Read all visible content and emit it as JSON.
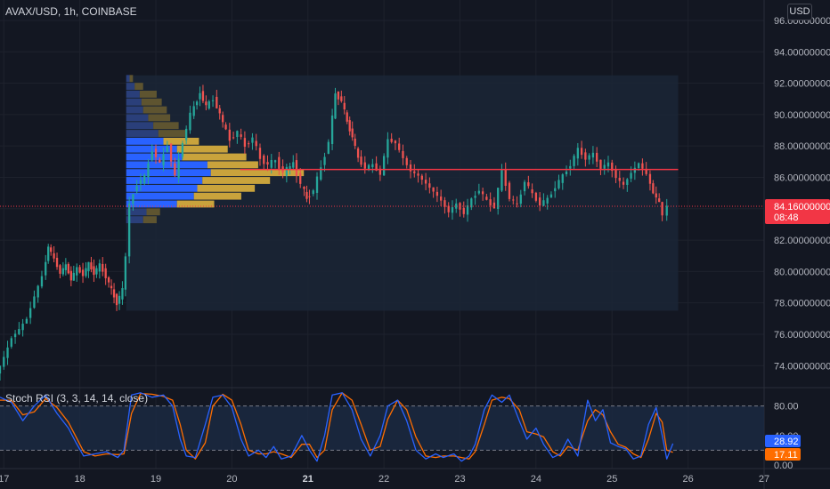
{
  "symbol_title": "AVAX/USD, 1h, COINBASE",
  "currency_button": "USD",
  "stoch_title": "Stoch RSI (3, 3, 14, 14, close)",
  "colors": {
    "background": "#131722",
    "grid": "#1e222d",
    "up": "#26a69a",
    "down": "#ef5350",
    "price_line": "#f23645",
    "vp_up": "#2962ff",
    "vp_down": "#c9a33c",
    "vp_up_outside": "#2a3f7a",
    "vp_down_outside": "#5e5430",
    "poc": "#f23645",
    "k_line": "#2962ff",
    "d_line": "#ff6d00",
    "stoch_band": "#1c2a44"
  },
  "chart_data": [
    {
      "type": "candlestick",
      "title": "AVAX/USD, 1h, COINBASE",
      "y_ticks": [
        "74.00000000",
        "76.00000000",
        "78.00000000",
        "80.00000000",
        "82.00000000",
        "84.00000000",
        "86.00000000",
        "88.00000000",
        "90.00000000",
        "92.00000000",
        "94.00000000",
        "96.00000000"
      ],
      "y_tick_values": [
        74,
        76,
        78,
        80,
        82,
        84,
        86,
        88,
        90,
        92,
        94,
        96
      ],
      "ylim": [
        72.6,
        97.3
      ],
      "x_ticks": [
        "17",
        "18",
        "19",
        "20",
        "21",
        "22",
        "23",
        "24",
        "25",
        "26",
        "27"
      ],
      "x_tick_day": [
        17,
        18,
        19,
        20,
        21,
        22,
        23,
        24,
        25,
        26,
        27
      ],
      "bold_ticks": [
        "21"
      ],
      "xlim_days": [
        16.95,
        27.0
      ],
      "last_price": "84.16000000",
      "last_price_value": 84.16,
      "countdown": "08:48",
      "volume_profile": {
        "day_range": [
          18.61,
          25.87
        ],
        "price_range": [
          77.5,
          92.5
        ],
        "poc_price": 86.5,
        "rows": [
          {
            "price": 92.3,
            "up": 0.02,
            "down": 0.02
          },
          {
            "price": 91.8,
            "up": 0.05,
            "down": 0.05
          },
          {
            "price": 91.3,
            "up": 0.08,
            "down": 0.1
          },
          {
            "price": 90.8,
            "up": 0.09,
            "down": 0.12
          },
          {
            "price": 90.3,
            "up": 0.1,
            "down": 0.14
          },
          {
            "price": 89.8,
            "up": 0.13,
            "down": 0.13
          },
          {
            "price": 89.3,
            "up": 0.16,
            "down": 0.15
          },
          {
            "price": 88.8,
            "up": 0.19,
            "down": 0.17
          },
          {
            "price": 88.3,
            "up": 0.22,
            "down": 0.21
          },
          {
            "price": 87.8,
            "up": 0.3,
            "down": 0.3
          },
          {
            "price": 87.3,
            "up": 0.33,
            "down": 0.38
          },
          {
            "price": 86.8,
            "up": 0.48,
            "down": 0.3
          },
          {
            "price": 86.3,
            "up": 0.5,
            "down": 0.55
          },
          {
            "price": 85.8,
            "up": 0.45,
            "down": 0.4
          },
          {
            "price": 85.3,
            "up": 0.42,
            "down": 0.34
          },
          {
            "price": 84.8,
            "up": 0.4,
            "down": 0.28
          },
          {
            "price": 84.3,
            "up": 0.3,
            "down": 0.22
          },
          {
            "price": 83.8,
            "up": 0.12,
            "down": 0.08
          },
          {
            "price": 83.3,
            "up": 0.1,
            "down": 0.08
          }
        ]
      },
      "price_path": [
        [
          16.95,
          73.5
        ],
        [
          17.05,
          74.5
        ],
        [
          17.15,
          75.8
        ],
        [
          17.25,
          76.3
        ],
        [
          17.35,
          77.0
        ],
        [
          17.45,
          78.4
        ],
        [
          17.55,
          79.7
        ],
        [
          17.62,
          81.6
        ],
        [
          17.7,
          80.8
        ],
        [
          17.78,
          79.9
        ],
        [
          17.85,
          80.4
        ],
        [
          17.92,
          79.5
        ],
        [
          18.0,
          80.2
        ],
        [
          18.08,
          79.8
        ],
        [
          18.15,
          80.5
        ],
        [
          18.22,
          79.9
        ],
        [
          18.3,
          80.4
        ],
        [
          18.38,
          79.7
        ],
        [
          18.45,
          78.8
        ],
        [
          18.52,
          78.0
        ],
        [
          18.6,
          78.8
        ],
        [
          18.65,
          81.0
        ],
        [
          18.7,
          84.3
        ],
        [
          18.8,
          85.6
        ],
        [
          18.9,
          86.0
        ],
        [
          19.0,
          87.8
        ],
        [
          19.1,
          86.8
        ],
        [
          19.2,
          88.1
        ],
        [
          19.3,
          86.0
        ],
        [
          19.4,
          88.3
        ],
        [
          19.5,
          90.0
        ],
        [
          19.62,
          91.4
        ],
        [
          19.7,
          90.5
        ],
        [
          19.8,
          91.0
        ],
        [
          19.92,
          89.5
        ],
        [
          20.02,
          88.4
        ],
        [
          20.12,
          88.9
        ],
        [
          20.22,
          88.0
        ],
        [
          20.32,
          88.5
        ],
        [
          20.42,
          87.2
        ],
        [
          20.52,
          86.8
        ],
        [
          20.62,
          87.1
        ],
        [
          20.72,
          86.3
        ],
        [
          20.85,
          86.9
        ],
        [
          20.95,
          85.6
        ],
        [
          21.02,
          84.6
        ],
        [
          21.12,
          85.2
        ],
        [
          21.22,
          86.6
        ],
        [
          21.32,
          88.3
        ],
        [
          21.4,
          91.3
        ],
        [
          21.48,
          90.9
        ],
        [
          21.55,
          89.5
        ],
        [
          21.62,
          88.6
        ],
        [
          21.7,
          87.2
        ],
        [
          21.8,
          86.6
        ],
        [
          21.9,
          86.8
        ],
        [
          22.0,
          86.2
        ],
        [
          22.1,
          88.4
        ],
        [
          22.2,
          88.2
        ],
        [
          22.3,
          87.2
        ],
        [
          22.4,
          86.4
        ],
        [
          22.5,
          86.1
        ],
        [
          22.6,
          85.6
        ],
        [
          22.7,
          85.1
        ],
        [
          22.8,
          84.5
        ],
        [
          22.9,
          83.8
        ],
        [
          23.0,
          84.3
        ],
        [
          23.1,
          83.7
        ],
        [
          23.2,
          84.6
        ],
        [
          23.3,
          85.2
        ],
        [
          23.4,
          84.5
        ],
        [
          23.5,
          84.1
        ],
        [
          23.6,
          86.4
        ],
        [
          23.7,
          84.7
        ],
        [
          23.8,
          84.2
        ],
        [
          23.9,
          85.8
        ],
        [
          24.0,
          84.9
        ],
        [
          24.1,
          84.3
        ],
        [
          24.2,
          84.6
        ],
        [
          24.3,
          85.4
        ],
        [
          24.4,
          86.1
        ],
        [
          24.5,
          86.8
        ],
        [
          24.6,
          87.8
        ],
        [
          24.7,
          87.2
        ],
        [
          24.8,
          87.5
        ],
        [
          24.9,
          86.6
        ],
        [
          25.0,
          86.9
        ],
        [
          25.1,
          86.0
        ],
        [
          25.2,
          85.5
        ],
        [
          25.3,
          86.3
        ],
        [
          25.4,
          86.9
        ],
        [
          25.5,
          86.2
        ],
        [
          25.58,
          85.0
        ],
        [
          25.66,
          84.4
        ],
        [
          25.72,
          83.6
        ],
        [
          25.78,
          84.16
        ]
      ]
    },
    {
      "type": "line",
      "title": "Stoch RSI (3, 3, 14, 14, close)",
      "y_ticks": [
        "80.00",
        "40.00",
        "0.00"
      ],
      "y_tick_values": [
        80,
        40,
        0
      ],
      "ylim": [
        -5,
        105
      ],
      "band": [
        20,
        80
      ],
      "current_k": "28.92",
      "current_d": "17.11",
      "current_k_value": 28.92,
      "current_d_value": 17.11,
      "k_path": [
        [
          16.95,
          92
        ],
        [
          17.1,
          85
        ],
        [
          17.25,
          60
        ],
        [
          17.4,
          80
        ],
        [
          17.55,
          95
        ],
        [
          17.7,
          70
        ],
        [
          17.85,
          50
        ],
        [
          17.95,
          30
        ],
        [
          18.05,
          12
        ],
        [
          18.2,
          15
        ],
        [
          18.35,
          18
        ],
        [
          18.5,
          10
        ],
        [
          18.58,
          20
        ],
        [
          18.68,
          95
        ],
        [
          18.8,
          98
        ],
        [
          18.95,
          92
        ],
        [
          19.1,
          95
        ],
        [
          19.22,
          80
        ],
        [
          19.32,
          35
        ],
        [
          19.4,
          12
        ],
        [
          19.52,
          10
        ],
        [
          19.65,
          55
        ],
        [
          19.75,
          92
        ],
        [
          19.88,
          95
        ],
        [
          20.0,
          78
        ],
        [
          20.12,
          35
        ],
        [
          20.22,
          12
        ],
        [
          20.35,
          20
        ],
        [
          20.45,
          10
        ],
        [
          20.55,
          25
        ],
        [
          20.65,
          8
        ],
        [
          20.78,
          12
        ],
        [
          20.92,
          40
        ],
        [
          21.02,
          20
        ],
        [
          21.12,
          5
        ],
        [
          21.22,
          40
        ],
        [
          21.32,
          95
        ],
        [
          21.45,
          98
        ],
        [
          21.58,
          75
        ],
        [
          21.7,
          35
        ],
        [
          21.82,
          12
        ],
        [
          21.95,
          40
        ],
        [
          22.05,
          80
        ],
        [
          22.18,
          88
        ],
        [
          22.3,
          60
        ],
        [
          22.42,
          20
        ],
        [
          22.55,
          8
        ],
        [
          22.68,
          15
        ],
        [
          22.78,
          10
        ],
        [
          22.92,
          15
        ],
        [
          23.02,
          5
        ],
        [
          23.12,
          12
        ],
        [
          23.2,
          28
        ],
        [
          23.32,
          75
        ],
        [
          23.42,
          95
        ],
        [
          23.55,
          85
        ],
        [
          23.65,
          95
        ],
        [
          23.78,
          60
        ],
        [
          23.88,
          35
        ],
        [
          24.0,
          50
        ],
        [
          24.1,
          28
        ],
        [
          24.22,
          10
        ],
        [
          24.32,
          15
        ],
        [
          24.42,
          35
        ],
        [
          24.55,
          12
        ],
        [
          24.68,
          88
        ],
        [
          24.78,
          60
        ],
        [
          24.88,
          75
        ],
        [
          24.98,
          30
        ],
        [
          25.08,
          25
        ],
        [
          25.18,
          22
        ],
        [
          25.28,
          8
        ],
        [
          25.38,
          12
        ],
        [
          25.48,
          55
        ],
        [
          25.58,
          78
        ],
        [
          25.66,
          40
        ],
        [
          25.72,
          8
        ],
        [
          25.8,
          28.92
        ]
      ],
      "d_path": [
        [
          16.95,
          88
        ],
        [
          17.1,
          88
        ],
        [
          17.25,
          68
        ],
        [
          17.4,
          72
        ],
        [
          17.55,
          90
        ],
        [
          17.7,
          78
        ],
        [
          17.85,
          58
        ],
        [
          17.95,
          38
        ],
        [
          18.05,
          18
        ],
        [
          18.2,
          12
        ],
        [
          18.35,
          15
        ],
        [
          18.5,
          14
        ],
        [
          18.58,
          15
        ],
        [
          18.68,
          70
        ],
        [
          18.8,
          97
        ],
        [
          18.95,
          96
        ],
        [
          19.1,
          93
        ],
        [
          19.22,
          88
        ],
        [
          19.32,
          55
        ],
        [
          19.4,
          20
        ],
        [
          19.52,
          8
        ],
        [
          19.65,
          30
        ],
        [
          19.75,
          80
        ],
        [
          19.88,
          96
        ],
        [
          20.0,
          88
        ],
        [
          20.12,
          55
        ],
        [
          20.22,
          20
        ],
        [
          20.35,
          15
        ],
        [
          20.45,
          15
        ],
        [
          20.55,
          18
        ],
        [
          20.65,
          15
        ],
        [
          20.78,
          10
        ],
        [
          20.92,
          28
        ],
        [
          21.02,
          28
        ],
        [
          21.12,
          10
        ],
        [
          21.22,
          20
        ],
        [
          21.32,
          75
        ],
        [
          21.45,
          98
        ],
        [
          21.58,
          88
        ],
        [
          21.7,
          55
        ],
        [
          21.82,
          20
        ],
        [
          21.95,
          25
        ],
        [
          22.05,
          62
        ],
        [
          22.18,
          88
        ],
        [
          22.3,
          75
        ],
        [
          22.42,
          38
        ],
        [
          22.55,
          12
        ],
        [
          22.68,
          10
        ],
        [
          22.78,
          12
        ],
        [
          22.92,
          12
        ],
        [
          23.02,
          10
        ],
        [
          23.12,
          8
        ],
        [
          23.2,
          18
        ],
        [
          23.32,
          55
        ],
        [
          23.42,
          88
        ],
        [
          23.55,
          92
        ],
        [
          23.65,
          90
        ],
        [
          23.78,
          75
        ],
        [
          23.88,
          45
        ],
        [
          24.0,
          42
        ],
        [
          24.1,
          38
        ],
        [
          24.22,
          18
        ],
        [
          24.32,
          12
        ],
        [
          24.42,
          25
        ],
        [
          24.55,
          20
        ],
        [
          24.68,
          60
        ],
        [
          24.78,
          75
        ],
        [
          24.88,
          68
        ],
        [
          24.98,
          45
        ],
        [
          25.08,
          28
        ],
        [
          25.18,
          24
        ],
        [
          25.28,
          15
        ],
        [
          25.38,
          10
        ],
        [
          25.48,
          35
        ],
        [
          25.58,
          70
        ],
        [
          25.66,
          58
        ],
        [
          25.72,
          20
        ],
        [
          25.8,
          17.11
        ]
      ]
    }
  ]
}
